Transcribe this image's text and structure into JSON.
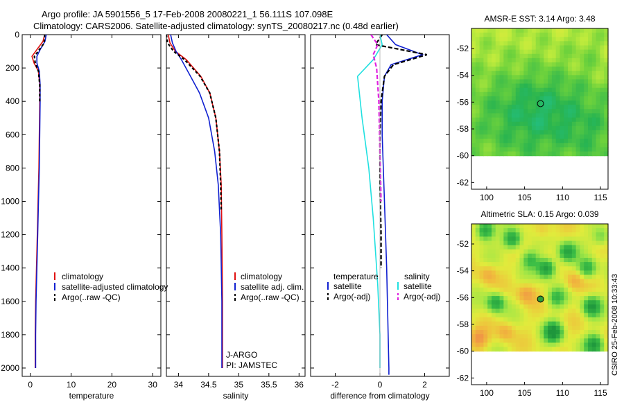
{
  "header": {
    "line1": "Argo profile: JA 5901556_5 17-Feb-2008 20080221_1 56.111S 107.098E",
    "line2": "Climatology: CARS2006. Satellite-adjusted climatology: synTS_20080217.nc (0.48d earlier)"
  },
  "credit": "CSIRO 25-Feb-2008 10:33:43",
  "colors": {
    "clim": "#e01010",
    "sat": "#1020d0",
    "argo": "#000000",
    "cyan": "#20e0e0",
    "magenta": "#e020e0"
  },
  "chart_data": [
    {
      "id": "temperature",
      "type": "line",
      "xlabel": "temperature",
      "xlim": [
        -2,
        32
      ],
      "xticks": [
        0,
        10,
        20,
        30
      ],
      "ylim": [
        2050,
        0
      ],
      "yticks": [
        0,
        200,
        400,
        600,
        800,
        1000,
        1200,
        1400,
        1600,
        1800,
        2000
      ],
      "series": [
        {
          "name": "climatology",
          "color": "clim",
          "dash": "",
          "x": [
            3.5,
            3.1,
            1.6,
            0.4,
            0.9,
            2.0,
            2.3,
            2.3,
            2.2,
            2.1,
            1.9,
            1.7,
            1.5,
            1.3,
            1.2,
            1.2
          ],
          "y": [
            0,
            40,
            90,
            130,
            170,
            220,
            300,
            400,
            600,
            800,
            1000,
            1200,
            1400,
            1600,
            1800,
            2000
          ]
        },
        {
          "name": "satellite-adjusted climatology",
          "color": "sat",
          "dash": "",
          "x": [
            3.9,
            3.6,
            2.4,
            1.6,
            1.6,
            2.2,
            2.4,
            2.4,
            2.3,
            2.2,
            2.0,
            1.8,
            1.6,
            1.4,
            1.3,
            1.3
          ],
          "y": [
            0,
            40,
            90,
            130,
            170,
            220,
            300,
            400,
            600,
            800,
            1000,
            1200,
            1400,
            1600,
            1800,
            2000
          ]
        },
        {
          "name": "Argo(..raw -QC)",
          "color": "argo",
          "dash": "4,3",
          "x": [
            3.5,
            3.4,
            2.2,
            1.0,
            1.2,
            2.0,
            2.3,
            2.3
          ],
          "y": [
            0,
            50,
            90,
            130,
            170,
            220,
            300,
            410
          ]
        }
      ],
      "legend": [
        "climatology",
        "satellite-adjusted climatology",
        "Argo(..raw -QC)"
      ]
    },
    {
      "id": "salinity",
      "type": "line",
      "xlabel": "salinity",
      "xlim": [
        33.8,
        36.1
      ],
      "xticks": [
        34,
        34.5,
        35,
        35.5,
        36
      ],
      "ylim": [
        2050,
        0
      ],
      "series": [
        {
          "name": "climatology",
          "color": "clim",
          "dash": "",
          "x": [
            33.83,
            33.86,
            33.95,
            34.13,
            34.37,
            34.52,
            34.62,
            34.68,
            34.71,
            34.72,
            34.73,
            34.73
          ],
          "y": [
            0,
            50,
            100,
            150,
            250,
            350,
            500,
            700,
            900,
            1200,
            1600,
            2000
          ]
        },
        {
          "name": "satellite adj. clim.",
          "color": "sat",
          "dash": "",
          "x": [
            33.87,
            33.9,
            33.96,
            34.05,
            34.2,
            34.35,
            34.5,
            34.6,
            34.66,
            34.7,
            34.72,
            34.72
          ],
          "y": [
            0,
            50,
            100,
            150,
            250,
            350,
            500,
            700,
            900,
            1200,
            1600,
            2000
          ]
        },
        {
          "name": "Argo(..raw -QC)",
          "color": "argo",
          "dash": "4,3",
          "x": [
            33.8,
            33.82,
            33.92,
            34.1,
            34.36,
            34.52,
            34.62,
            34.68,
            34.7,
            34.71
          ],
          "y": [
            0,
            50,
            100,
            150,
            250,
            350,
            500,
            700,
            900,
            1060
          ]
        }
      ],
      "legend": [
        "climatology",
        "satellite adj. clim.",
        "Argo(..raw -QC)"
      ],
      "annotation": [
        "J-ARGO",
        "PI: JAMSTEC"
      ]
    },
    {
      "id": "difference",
      "type": "line",
      "xlabel": "difference from climatology",
      "xlim": [
        -3.1,
        3.1
      ],
      "xticks": [
        -2,
        0,
        2
      ],
      "ylim": [
        2050,
        0
      ],
      "series": [
        {
          "name": "temperature satellite",
          "color": "sat",
          "dash": "",
          "x": [
            0.3,
            0.7,
            1.9,
            0.5,
            0.2,
            0.1,
            0.1,
            0.2,
            0.3,
            0.35,
            0.4,
            0.4
          ],
          "y": [
            0,
            60,
            120,
            180,
            250,
            400,
            600,
            1000,
            1400,
            1700,
            2000,
            2040
          ]
        },
        {
          "name": "temperature Argo(-adj)",
          "color": "argo",
          "dash": "6,3",
          "x": [
            0.1,
            -0.2,
            2.1,
            0.6,
            0.2,
            0.05,
            0.0,
            0.0,
            0.05,
            0.05
          ],
          "y": [
            0,
            60,
            120,
            180,
            250,
            400,
            600,
            900,
            1200,
            1400
          ]
        },
        {
          "name": "salinity satellite",
          "color": "cyan",
          "dash": "",
          "x": [
            0.0,
            0.1,
            -0.3,
            -1.0,
            -0.8,
            -0.5,
            -0.3,
            -0.1,
            0.0,
            0.0
          ],
          "y": [
            0,
            60,
            150,
            250,
            500,
            800,
            1100,
            1500,
            1800,
            2000
          ]
        },
        {
          "name": "salinity Argo(-adj)",
          "color": "magenta",
          "dash": "6,3",
          "x": [
            -0.4,
            -0.1,
            -0.3,
            -0.15,
            -0.05,
            0.0,
            0.05
          ],
          "y": [
            0,
            60,
            120,
            200,
            400,
            700,
            1000
          ]
        }
      ],
      "legend": {
        "temperature": {
          "title": "temperature",
          "items": [
            "satellite",
            "Argo(-adj)"
          ]
        },
        "salinity": {
          "title": "salinity",
          "items": [
            "satellite",
            "Argo(-adj)"
          ]
        }
      }
    },
    {
      "id": "sst_map",
      "type": "heatmap",
      "title": "AMSR-E SST: 3.14 Argo: 3.48",
      "xlim": [
        98,
        116
      ],
      "xticks": [
        100,
        105,
        110,
        115
      ],
      "ylim": [
        -62.5,
        -50.5
      ],
      "yticks": [
        -52,
        -54,
        -56,
        -58,
        -60,
        -62
      ],
      "data_ylim": [
        -60,
        -50.5
      ],
      "marker": {
        "lon": 107.098,
        "lat": -56.111
      }
    },
    {
      "id": "sla_map",
      "type": "heatmap",
      "title": "Altimetric SLA: 0.15 Argo: 0.039",
      "xlim": [
        98,
        116
      ],
      "xticks": [
        100,
        105,
        110,
        115
      ],
      "ylim": [
        -62.5,
        -50.5
      ],
      "yticks": [
        -52,
        -54,
        -56,
        -58,
        -60,
        -62
      ],
      "data_ylim": [
        -60,
        -50.5
      ],
      "marker": {
        "lon": 107.098,
        "lat": -56.111
      }
    }
  ]
}
